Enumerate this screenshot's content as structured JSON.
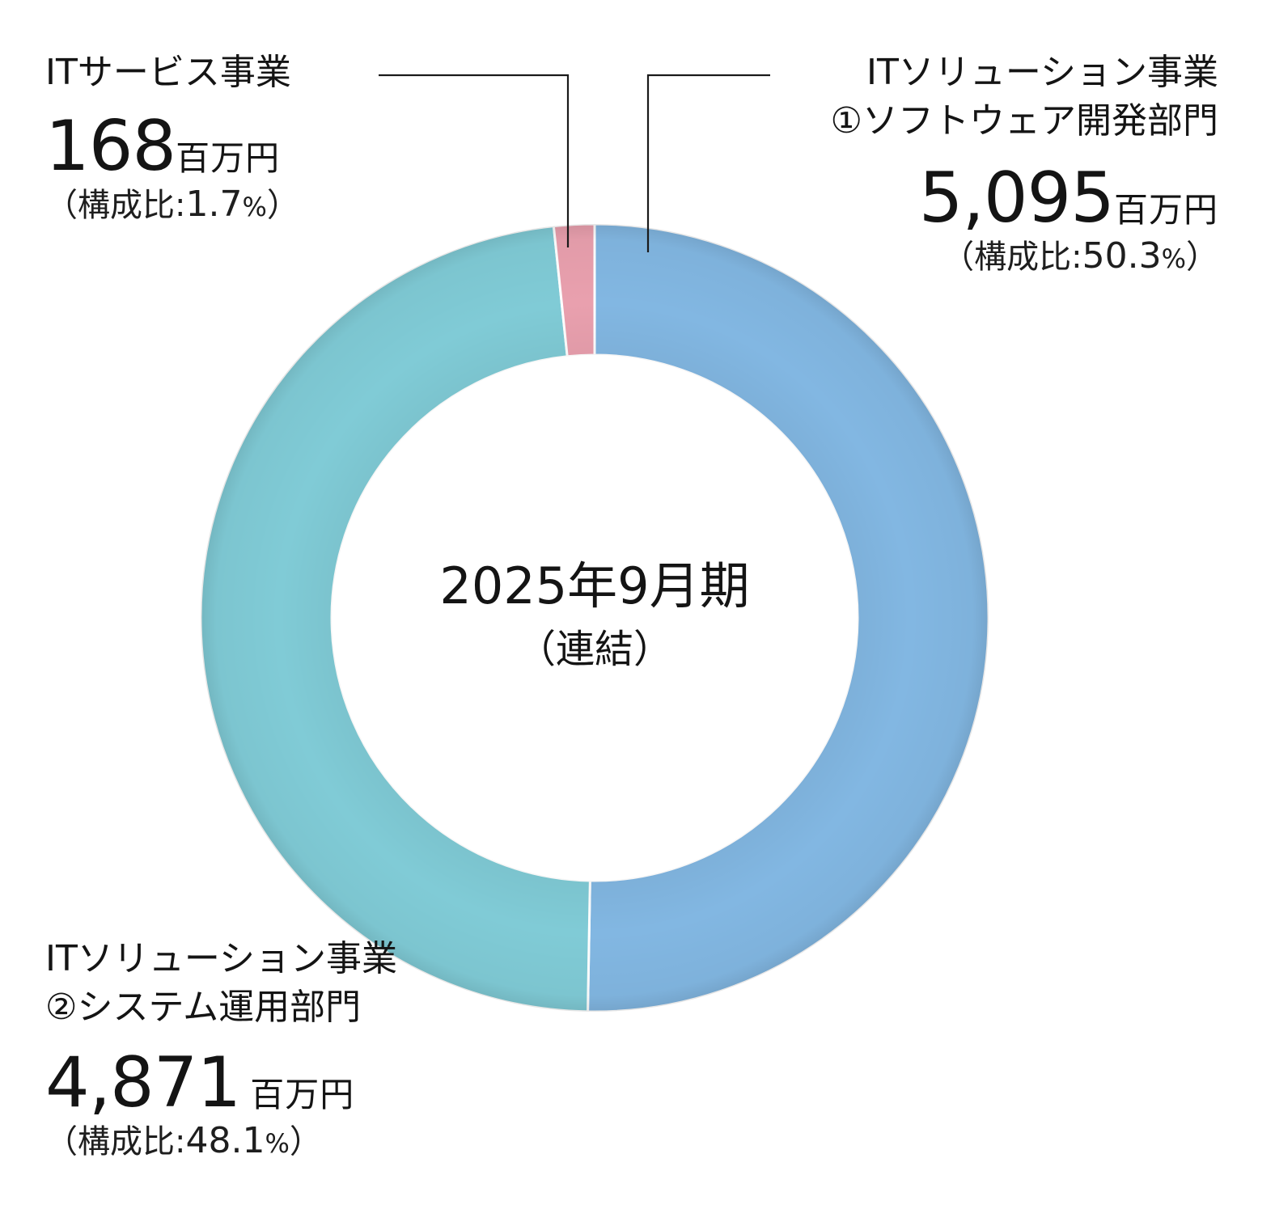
{
  "chart_data": {
    "type": "pie",
    "variant": "donut",
    "title": "2025年9月期",
    "subtitle": "（連結）",
    "unit": "百万円",
    "categories": [
      "ITソリューション事業 ①ソフトウェア開発部門",
      "ITソリューション事業 ②システム運用部門",
      "ITサービス事業"
    ],
    "values": [
      5095,
      4871,
      168
    ],
    "shares_percent": [
      50.3,
      48.1,
      1.7
    ],
    "colors": [
      "#82b7e2",
      "#80cbd6",
      "#e9a0ae"
    ],
    "start_angle_deg": 0,
    "direction": "clockwise",
    "legend_position": "callout labels"
  },
  "center": {
    "title": "2025年9月期",
    "subtitle": "（連結）"
  },
  "labels": {
    "software": {
      "line1": "ITソリューション事業",
      "line2": "①ソフトウェア開発部門",
      "value": "5,095",
      "unit": "百万円",
      "ratio_prefix": "（構成比:",
      "ratio_value": "50.3",
      "ratio_pct": "%",
      "ratio_suffix": "）"
    },
    "operations": {
      "line1": "ITソリューション事業",
      "line2": "②システム運用部門",
      "value": "4,871",
      "unit": "百万円",
      "ratio_prefix": "（構成比:",
      "ratio_value": "48.1",
      "ratio_pct": "%",
      "ratio_suffix": "）"
    },
    "service": {
      "line1": "ITサービス事業",
      "value": "168",
      "unit": "百万円",
      "ratio_prefix": "（構成比:",
      "ratio_value": "1.7",
      "ratio_pct": "%",
      "ratio_suffix": "）"
    }
  }
}
